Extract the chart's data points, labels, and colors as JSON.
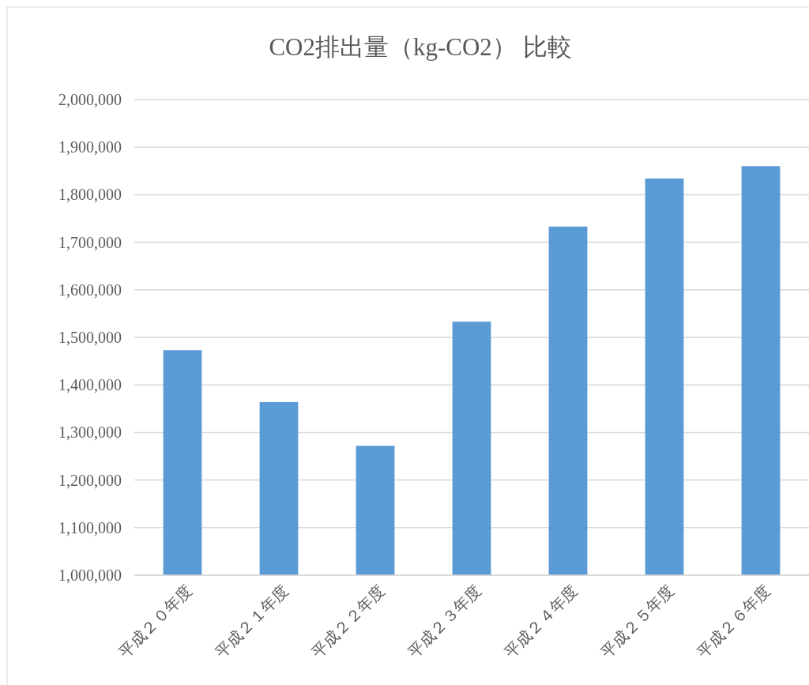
{
  "chart_data": {
    "type": "bar",
    "title": "CO2排出量（kg-CO2）  比較",
    "categories": [
      "平成２０年度",
      "平成２１年度",
      "平成２２年度",
      "平成２３年度",
      "平成２４年度",
      "平成２５年度",
      "平成２６年度"
    ],
    "values": [
      1473000,
      1364000,
      1272000,
      1533000,
      1733000,
      1834000,
      1860000
    ],
    "color": "#5b9bd5",
    "ylim": [
      1000000,
      2000000
    ],
    "yticks": [
      {
        "value": 1000000,
        "label": "1,000,000"
      },
      {
        "value": 1100000,
        "label": "1,100,000"
      },
      {
        "value": 1200000,
        "label": "1,200,000"
      },
      {
        "value": 1300000,
        "label": "1,300,000"
      },
      {
        "value": 1400000,
        "label": "1,400,000"
      },
      {
        "value": 1500000,
        "label": "1,500,000"
      },
      {
        "value": 1600000,
        "label": "1,600,000"
      },
      {
        "value": 1700000,
        "label": "1,700,000"
      },
      {
        "value": 1800000,
        "label": "1,800,000"
      },
      {
        "value": 1900000,
        "label": "1,900,000"
      },
      {
        "value": 2000000,
        "label": "2,000,000"
      }
    ],
    "grid": "y"
  }
}
